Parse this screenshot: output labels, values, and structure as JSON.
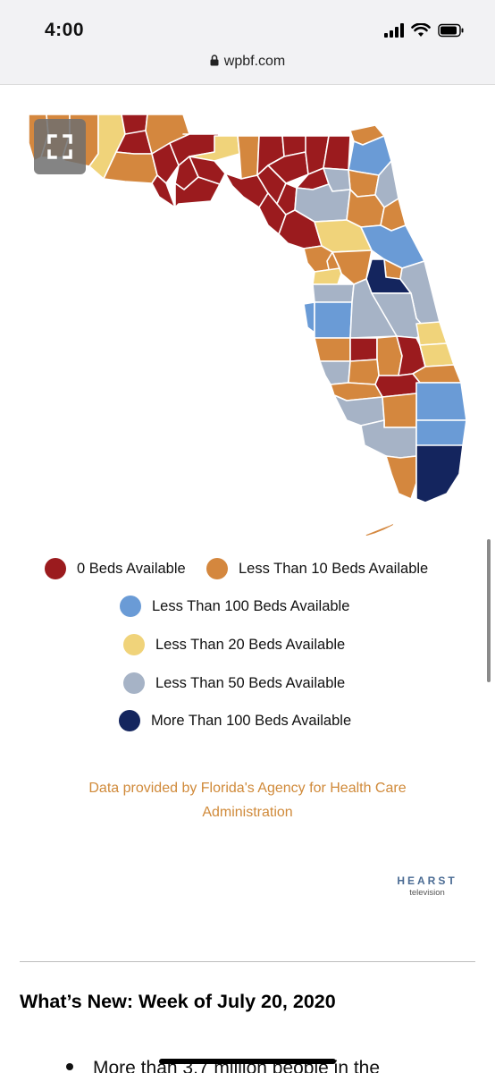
{
  "status_bar": {
    "time": "4:00"
  },
  "browser": {
    "url": "wpbf.com"
  },
  "colors": {
    "beds_0": "#9b1b1e",
    "beds_lt10": "#d4873e",
    "beds_lt100": "#6a9bd6",
    "beds_lt20": "#f0d37a",
    "beds_lt50": "#a6b3c6",
    "beds_gt100": "#14255e"
  },
  "legend": {
    "item_0": "0 Beds Available",
    "item_lt10": "Less Than 10 Beds Available",
    "item_lt100": "Less Than 100 Beds Available",
    "item_lt20": "Less Than 20 Beds Available",
    "item_lt50": "Less Than 50 Beds Available",
    "item_gt100": "More Than 100 Beds Available"
  },
  "credit": {
    "line1": "Data provided by Florida's Agency for Health Care",
    "line2": "Administration"
  },
  "logo": {
    "brand": "HEARST",
    "sub": "television"
  },
  "article": {
    "heading": "What’s New: Week of July 20, 2020",
    "bullet_partial": "More than 3.7 million people in the"
  }
}
